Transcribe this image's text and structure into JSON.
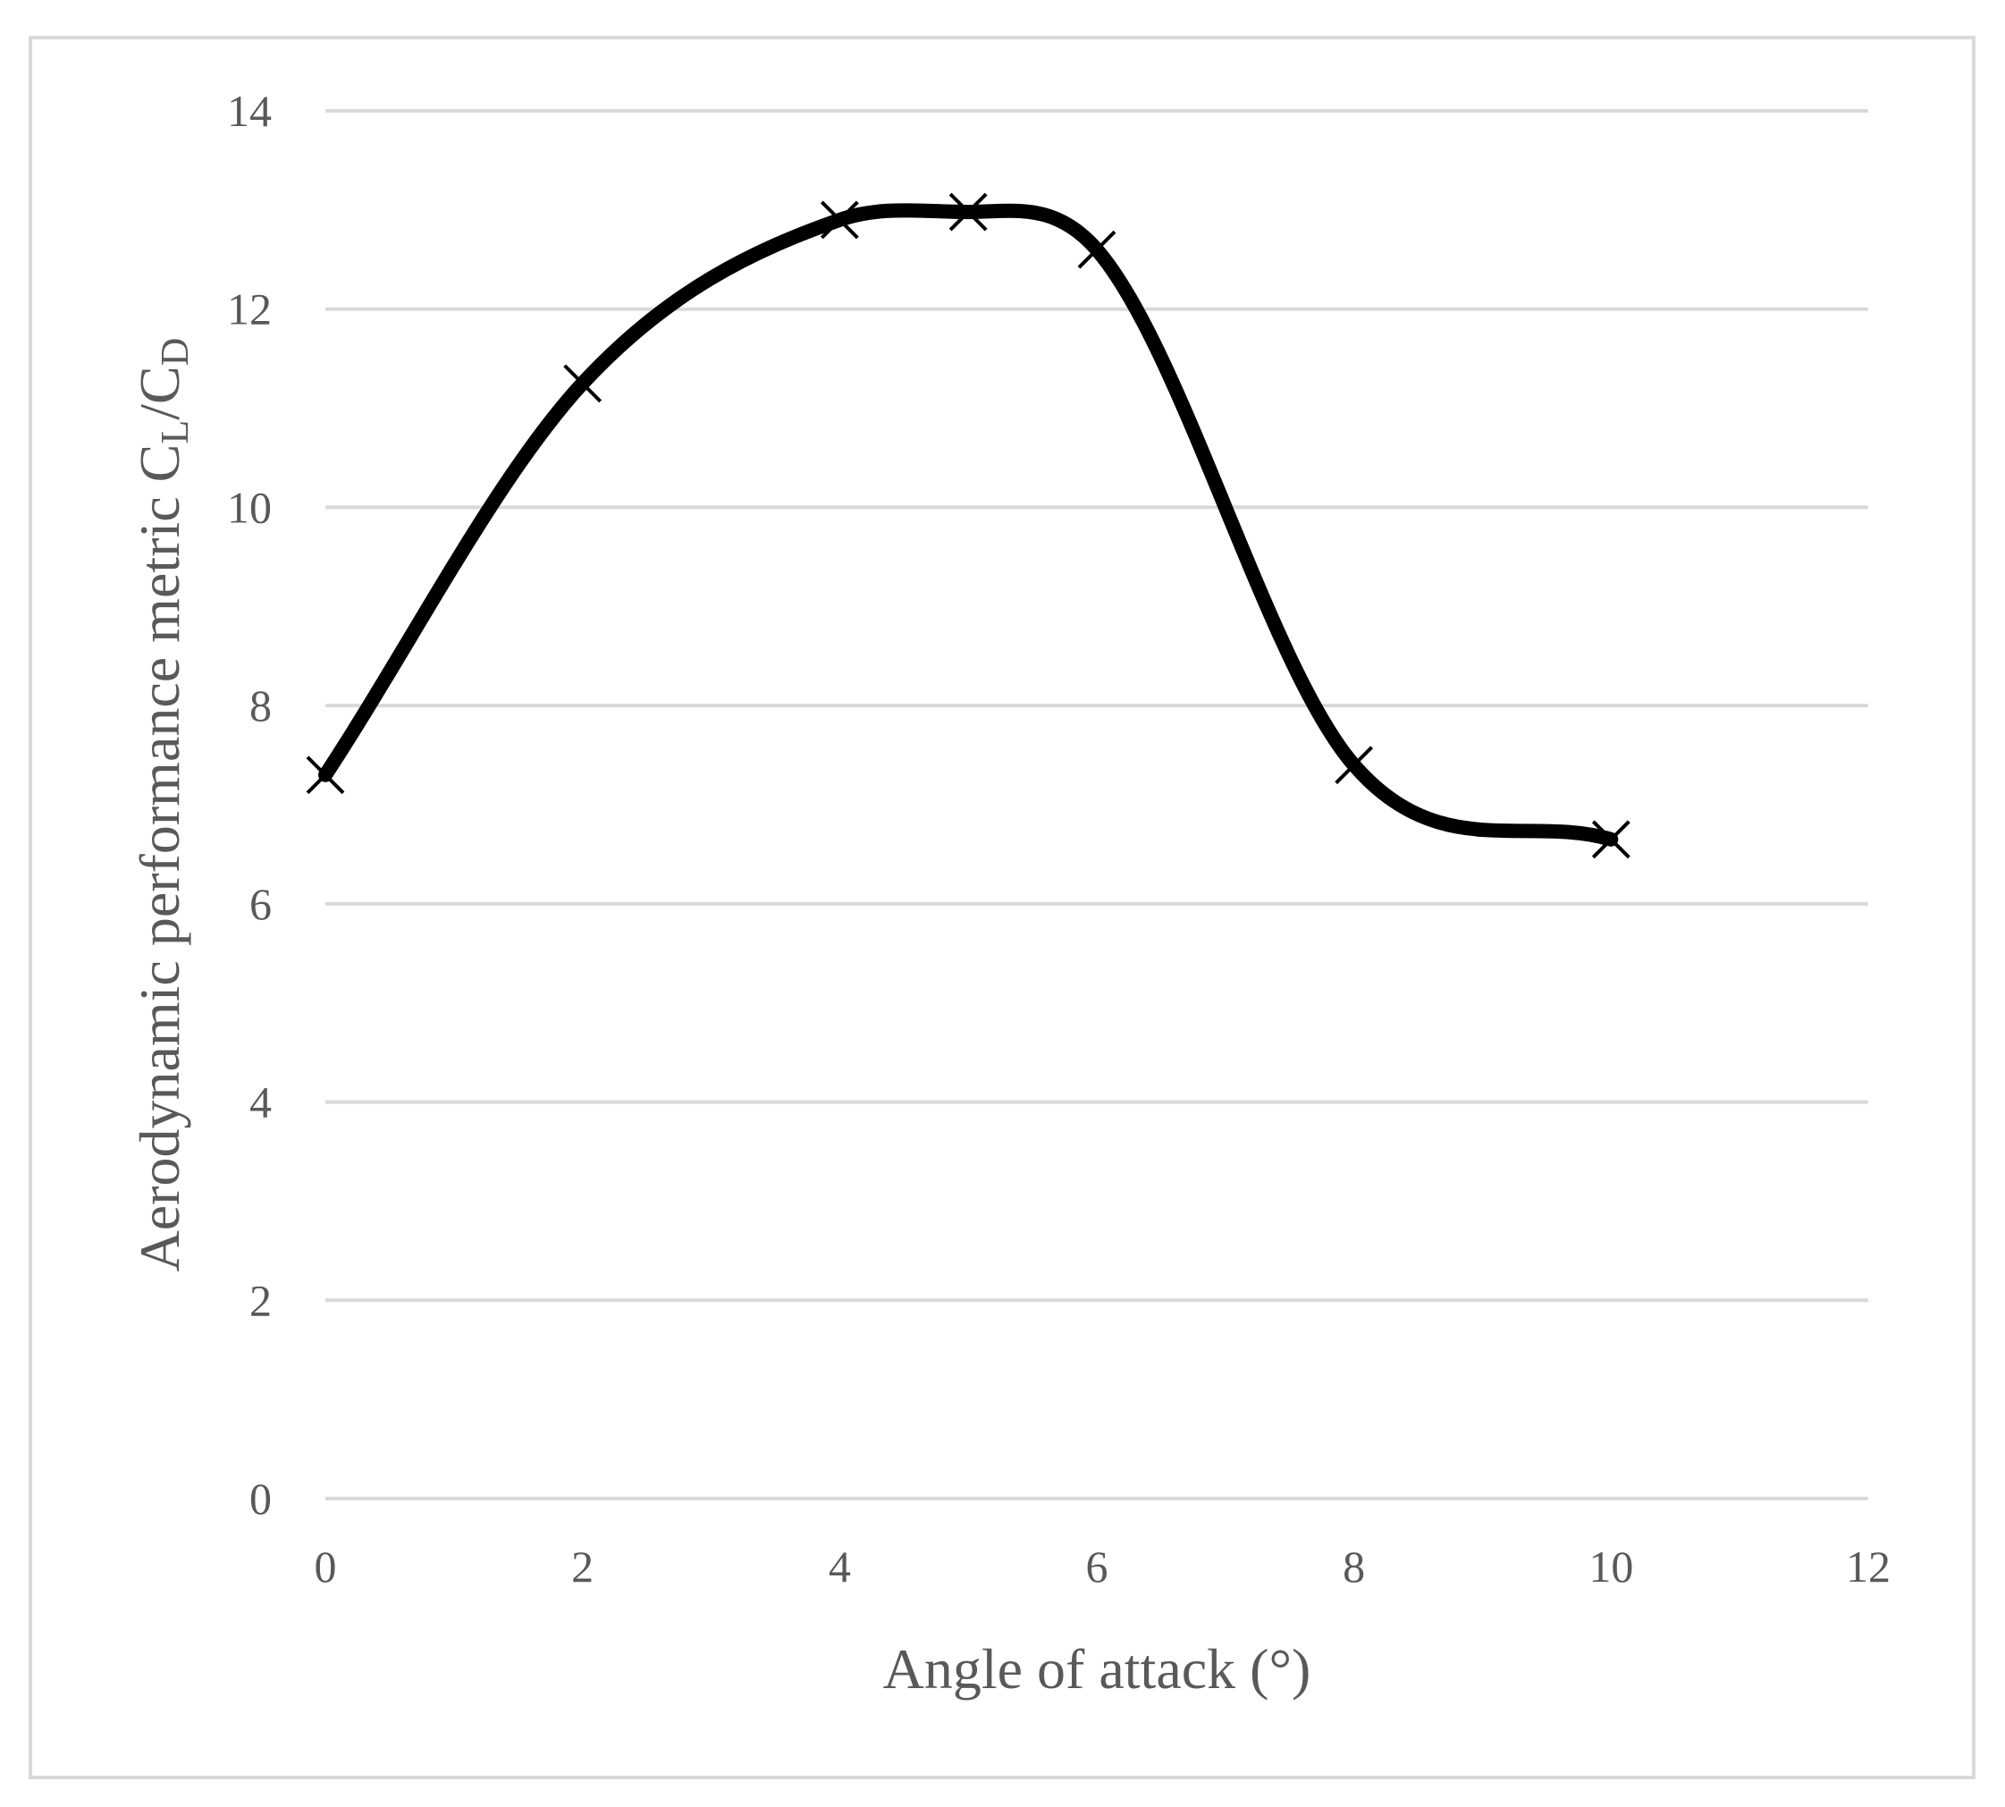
{
  "chart_data": {
    "type": "line",
    "title": "",
    "xlabel": "Angle of attack (°)",
    "ylabel": {
      "prefix": "Aerodynamic  performance metric C",
      "sub1": "L",
      "mid": "/C",
      "sub2": "D"
    },
    "xlim": [
      0,
      12
    ],
    "ylim": [
      0,
      14
    ],
    "xticks": [
      0,
      2,
      4,
      6,
      8,
      10,
      12
    ],
    "yticks": [
      0,
      2,
      4,
      6,
      8,
      10,
      12,
      14
    ],
    "grid": "horizontal",
    "legend": "none",
    "marker": "x",
    "smooth": true,
    "line_color": "#000000",
    "grid_color": "#d9d9d9",
    "text_color": "#595959",
    "series": [
      {
        "x": [
          0,
          2,
          4,
          5,
          6,
          8,
          10
        ],
        "y": [
          7.3,
          11.25,
          12.9,
          12.98,
          12.6,
          7.4,
          6.65
        ]
      }
    ]
  }
}
